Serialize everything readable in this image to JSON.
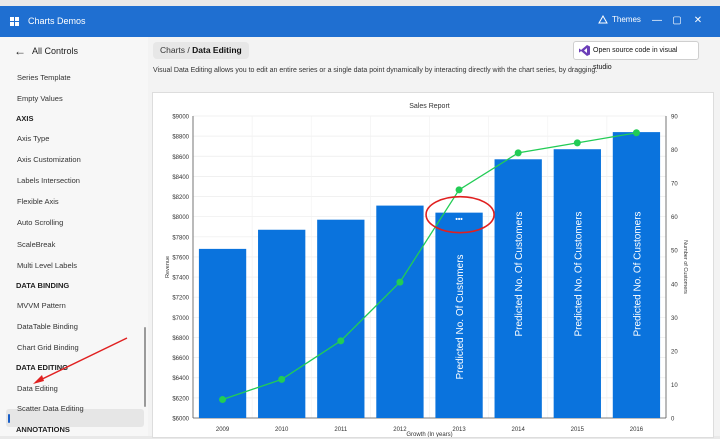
{
  "app": {
    "title": "Charts Demos",
    "themes_label": "Themes"
  },
  "window_controls": {
    "minimize": "—",
    "maximize": "▢",
    "close": "✕"
  },
  "sidebar": {
    "back_label": "All Controls",
    "items": [
      {
        "kind": "item",
        "label": "Series Template"
      },
      {
        "kind": "item",
        "label": "Empty Values"
      },
      {
        "kind": "header",
        "label": "AXIS"
      },
      {
        "kind": "item",
        "label": "Axis Type"
      },
      {
        "kind": "item",
        "label": "Axis Customization"
      },
      {
        "kind": "item",
        "label": "Labels Intersection"
      },
      {
        "kind": "item",
        "label": "Flexible Axis"
      },
      {
        "kind": "item",
        "label": "Auto Scrolling"
      },
      {
        "kind": "item",
        "label": "ScaleBreak"
      },
      {
        "kind": "item",
        "label": "Multi Level Labels"
      },
      {
        "kind": "header",
        "label": "DATA BINDING"
      },
      {
        "kind": "item",
        "label": "MVVM Pattern"
      },
      {
        "kind": "item",
        "label": "DataTable Binding"
      },
      {
        "kind": "item",
        "label": "Chart Grid Binding"
      },
      {
        "kind": "header",
        "label": "DATA EDITING"
      },
      {
        "kind": "item",
        "label": "Data Editing",
        "selected": true
      },
      {
        "kind": "item",
        "label": "Scatter Data Editing"
      },
      {
        "kind": "header",
        "label": "ANNOTATIONS"
      }
    ]
  },
  "main": {
    "breadcrumb_parent": "Charts /",
    "breadcrumb_current": "Data Editing",
    "source_button": "Open source code in visual studio",
    "description": "Visual Data Editing allows you to edit an entire series or a single data point dynamically by interacting directly with the chart series, by dragging."
  },
  "chart_data": {
    "type": "bar",
    "title": "Sales Report",
    "xlabel": "Growth (In years)",
    "ylabel": "Revenue",
    "y2label": "Number of Customers",
    "categories": [
      "2009",
      "2010",
      "2011",
      "2012",
      "2013",
      "2014",
      "2015",
      "2016"
    ],
    "ylim": [
      6000,
      9000
    ],
    "y2lim": [
      0,
      90
    ],
    "yticks": [
      "$6000",
      "$6200",
      "$6400",
      "$6600",
      "$6800",
      "$7000",
      "$7200",
      "$7400",
      "$7600",
      "$7800",
      "$8000",
      "$8200",
      "$8400",
      "$8600",
      "$8800",
      "$9000"
    ],
    "y2ticks": [
      "0",
      "10",
      "20",
      "30",
      "40",
      "50",
      "60",
      "70",
      "80",
      "90"
    ],
    "series": [
      {
        "name": "Revenue",
        "type": "bar",
        "color": "#0a73dd",
        "values": [
          7680,
          7870,
          7970,
          8110,
          8040,
          8570,
          8670,
          8840
        ]
      },
      {
        "name": "Customers",
        "type": "line",
        "color": "#22cc55",
        "values": [
          5.5,
          11.5,
          23,
          40.5,
          68,
          79,
          82,
          85
        ]
      }
    ],
    "bar_labels": [
      "",
      "",
      "",
      "",
      "Predicted No. Of Customers",
      "Predicted No. Of Customers",
      "Predicted No. Of Customers",
      "Predicted No. Of Customers"
    ],
    "edit_indicator": "•••",
    "highlight_color": "#e02020",
    "grid": true
  }
}
